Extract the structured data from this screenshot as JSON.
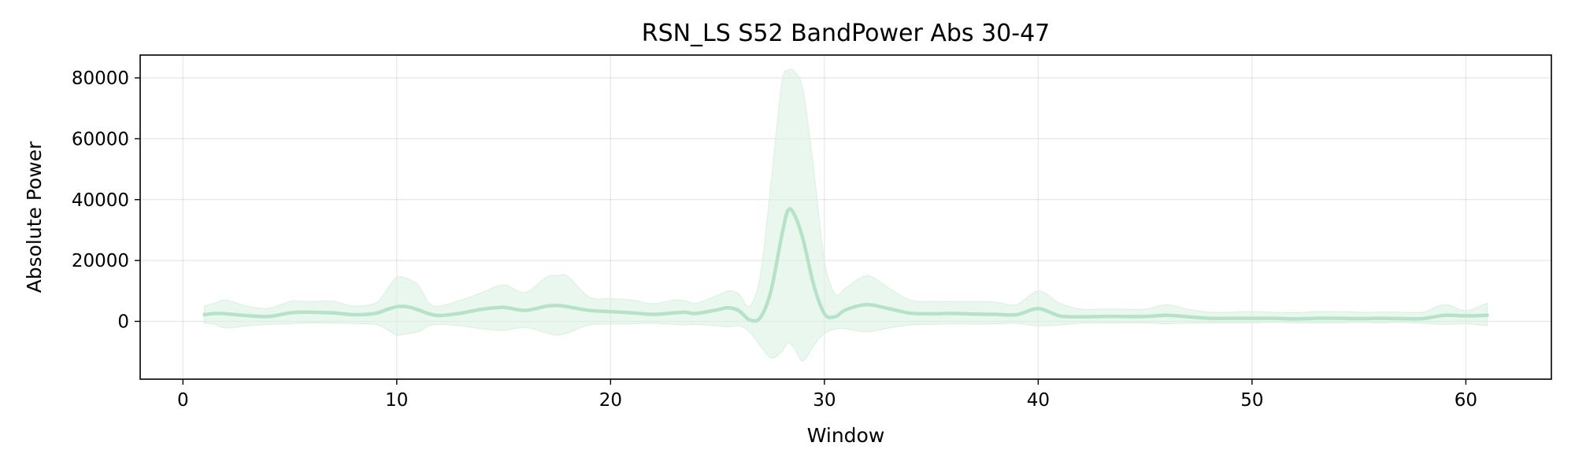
{
  "chart_data": {
    "type": "line",
    "title": "RSN_LS S52 BandPower Abs 30-47",
    "xlabel": "Window",
    "ylabel": "Absolute Power",
    "xlim": [
      -2,
      64
    ],
    "ylim": [
      -19000,
      87500
    ],
    "xticks": [
      0,
      10,
      20,
      30,
      40,
      50,
      60
    ],
    "yticks": [
      0,
      20000,
      40000,
      60000,
      80000
    ],
    "grid": true,
    "legend": "none",
    "colors": {
      "line": "#b6e3c8",
      "band": "#d9f0e1"
    },
    "series": [
      {
        "x": [
          1,
          1.5,
          2,
          3,
          4,
          5,
          5.5,
          6,
          7,
          8,
          9,
          9.5,
          10,
          10.5,
          11,
          11.5,
          12,
          13,
          14,
          15,
          16,
          17,
          17.5,
          18,
          19,
          20,
          21,
          22,
          23,
          23.5,
          24,
          25,
          25.5,
          26,
          26.5,
          27,
          27.5,
          28,
          28.3,
          28.6,
          29,
          29.5,
          30,
          30.5,
          31,
          32,
          33,
          34,
          35,
          36,
          37,
          38,
          39,
          40,
          41,
          42,
          43,
          44,
          45,
          46,
          47,
          48,
          49,
          50,
          51,
          52,
          53,
          54,
          55,
          56,
          57,
          58,
          59,
          60,
          61
        ],
        "y": [
          2200,
          2600,
          2500,
          1900,
          1600,
          2800,
          3000,
          3000,
          2800,
          2200,
          2600,
          3800,
          4800,
          4800,
          3800,
          2500,
          1900,
          2700,
          4000,
          4600,
          3600,
          5000,
          5200,
          4800,
          3600,
          3200,
          2800,
          2300,
          2800,
          3000,
          2600,
          3800,
          4500,
          3500,
          500,
          1200,
          10000,
          28000,
          36500,
          35000,
          27000,
          12000,
          2500,
          1500,
          3800,
          5500,
          4200,
          2700,
          2500,
          2600,
          2400,
          2300,
          2200,
          4200,
          1800,
          1500,
          1600,
          1600,
          1600,
          2000,
          1500,
          1000,
          1000,
          1000,
          1000,
          800,
          1000,
          1000,
          900,
          1000,
          900,
          900,
          2000,
          1800,
          2000
        ],
        "upper": [
          5000,
          6000,
          7000,
          5000,
          4300,
          6500,
          6600,
          6500,
          6600,
          5000,
          6000,
          10000,
          14500,
          14000,
          12000,
          6000,
          5000,
          7000,
          9500,
          12000,
          9500,
          14500,
          15000,
          14800,
          8000,
          7500,
          7000,
          5800,
          7000,
          6800,
          6000,
          8500,
          10000,
          9000,
          5000,
          15000,
          45000,
          78000,
          82500,
          82000,
          76000,
          50000,
          20000,
          9000,
          11000,
          15000,
          11000,
          7000,
          6500,
          6500,
          6500,
          6300,
          5500,
          10000,
          6000,
          4000,
          4000,
          4000,
          4000,
          5500,
          4000,
          3000,
          3000,
          3200,
          3000,
          2800,
          3200,
          3200,
          3000,
          3000,
          3000,
          3000,
          5500,
          3500,
          6000
        ],
        "lower": [
          -600,
          -1000,
          -2200,
          -1500,
          -1000,
          -800,
          -600,
          -500,
          -600,
          -700,
          -1000,
          -2500,
          -4500,
          -4000,
          -3500,
          -1500,
          -1000,
          -1500,
          -2500,
          -3000,
          -2000,
          -3800,
          -4500,
          -3800,
          -1200,
          -900,
          -800,
          -600,
          -1000,
          -1200,
          -1000,
          -1500,
          -1800,
          -1500,
          -3500,
          -8000,
          -12000,
          -10000,
          -7000,
          -9000,
          -13000,
          -8000,
          -4000,
          -2500,
          -2500,
          -3500,
          -2200,
          -1200,
          -1000,
          -800,
          -900,
          -800,
          -600,
          -1500,
          -1200,
          -600,
          -500,
          -500,
          -500,
          -800,
          -600,
          -500,
          -500,
          -500,
          -400,
          -500,
          -500,
          -500,
          -400,
          -500,
          -400,
          -600,
          -1000,
          -800,
          -1500
        ]
      }
    ]
  }
}
